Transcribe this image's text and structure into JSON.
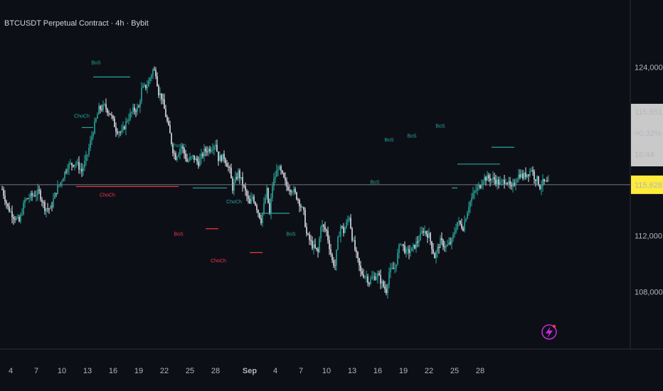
{
  "header": {
    "title": "BTCUSDT Perpetual Contract · 4h · Bybit"
  },
  "colors": {
    "bg": "#0d0f17",
    "up": "#26a69a",
    "down": "#e0e3eb",
    "bull": "#26a69a",
    "bear": "#f23645",
    "price_bg": "#ffeb3b",
    "last_bg": "#c9c9c9",
    "axis_text": "#b2b5be",
    "logo": "#c22bd9"
  },
  "price_panel": {
    "last": "115,651.8",
    "change": "+0.32%",
    "countdown": "16:44",
    "current": "115,628.9"
  },
  "logo_icon": "lightning-icon",
  "chart_data": {
    "type": "candlestick",
    "y_ticks": [
      "124,000.0",
      "112,000.0",
      "108,000.0"
    ],
    "y_tick_values": [
      124000,
      112000,
      108000
    ],
    "x_ticks": [
      "4",
      "7",
      "10",
      "13",
      "16",
      "19",
      "22",
      "25",
      "28",
      "Sep",
      "4",
      "7",
      "10",
      "13",
      "16",
      "19",
      "22",
      "25",
      "28"
    ],
    "x_tick_index": [
      6,
      24,
      42,
      60,
      78,
      96,
      114,
      132,
      150,
      174,
      192,
      210,
      228,
      246,
      264,
      282,
      300,
      318,
      336
    ],
    "current_price": 115628.9,
    "close_path": [
      [
        0,
        115300
      ],
      [
        4,
        114000
      ],
      [
        8,
        113400
      ],
      [
        12,
        113000
      ],
      [
        16,
        114500
      ],
      [
        20,
        114800
      ],
      [
        26,
        115100
      ],
      [
        30,
        114000
      ],
      [
        34,
        113900
      ],
      [
        38,
        115200
      ],
      [
        42,
        116000
      ],
      [
        46,
        117000
      ],
      [
        52,
        117200
      ],
      [
        56,
        116600
      ],
      [
        60,
        117800
      ],
      [
        64,
        119500
      ],
      [
        68,
        121000
      ],
      [
        72,
        121200
      ],
      [
        76,
        120700
      ],
      [
        80,
        119600
      ],
      [
        84,
        119300
      ],
      [
        88,
        120300
      ],
      [
        92,
        120900
      ],
      [
        96,
        121100
      ],
      [
        98,
        122400
      ],
      [
        102,
        122700
      ],
      [
        106,
        123800
      ],
      [
        108,
        123600
      ],
      [
        110,
        122200
      ],
      [
        112,
        121900
      ],
      [
        114,
        121000
      ],
      [
        118,
        119200
      ],
      [
        120,
        118100
      ],
      [
        122,
        117600
      ],
      [
        126,
        118400
      ],
      [
        130,
        117300
      ],
      [
        134,
        117600
      ],
      [
        138,
        117200
      ],
      [
        142,
        118000
      ],
      [
        146,
        118200
      ],
      [
        150,
        118600
      ],
      [
        152,
        117500
      ],
      [
        156,
        117600
      ],
      [
        160,
        116600
      ],
      [
        162,
        115400
      ],
      [
        166,
        116500
      ],
      [
        170,
        115400
      ],
      [
        174,
        114200
      ],
      [
        176,
        114800
      ],
      [
        178,
        114300
      ],
      [
        182,
        113100
      ],
      [
        186,
        115200
      ],
      [
        188,
        113500
      ],
      [
        190,
        115600
      ],
      [
        194,
        116900
      ],
      [
        196,
        116500
      ],
      [
        200,
        115500
      ],
      [
        204,
        115300
      ],
      [
        208,
        114600
      ],
      [
        212,
        113600
      ],
      [
        214,
        112100
      ],
      [
        218,
        111300
      ],
      [
        222,
        110800
      ],
      [
        224,
        112800
      ],
      [
        228,
        112300
      ],
      [
        232,
        110200
      ],
      [
        234,
        109900
      ],
      [
        236,
        111700
      ],
      [
        238,
        112700
      ],
      [
        240,
        112300
      ],
      [
        244,
        113400
      ],
      [
        246,
        111900
      ],
      [
        248,
        111000
      ],
      [
        252,
        109400
      ],
      [
        256,
        109100
      ],
      [
        258,
        108700
      ],
      [
        260,
        109000
      ],
      [
        264,
        109200
      ],
      [
        268,
        108400
      ],
      [
        270,
        108100
      ],
      [
        272,
        109400
      ],
      [
        276,
        109700
      ],
      [
        280,
        111600
      ],
      [
        284,
        110800
      ],
      [
        288,
        111000
      ],
      [
        292,
        111600
      ],
      [
        296,
        112400
      ],
      [
        300,
        112000
      ],
      [
        304,
        110500
      ],
      [
        308,
        111600
      ],
      [
        312,
        111200
      ],
      [
        316,
        111600
      ],
      [
        320,
        113000
      ],
      [
        324,
        112600
      ],
      [
        328,
        114200
      ],
      [
        332,
        115100
      ],
      [
        336,
        115600
      ],
      [
        338,
        116100
      ],
      [
        342,
        116100
      ],
      [
        346,
        116000
      ],
      [
        350,
        115700
      ],
      [
        354,
        116000
      ],
      [
        358,
        115300
      ],
      [
        362,
        116200
      ],
      [
        364,
        116400
      ],
      [
        366,
        116200
      ],
      [
        370,
        116500
      ],
      [
        372,
        116800
      ],
      [
        374,
        116200
      ],
      [
        376,
        116000
      ],
      [
        378,
        115500
      ],
      [
        380,
        115800
      ],
      [
        384,
        115700
      ]
    ],
    "annotations": [
      {
        "text": "BoS",
        "color": "bull",
        "x": 66,
        "y": 124200
      },
      {
        "text": "ChoCh",
        "color": "bull",
        "x": 56,
        "y": 120400
      },
      {
        "text": "ChoCh",
        "color": "bear",
        "x": 74,
        "y": 114800
      },
      {
        "text": "ChoCh",
        "color": "bull",
        "x": 124,
        "y": 118300
      },
      {
        "text": "BoS",
        "color": "bear",
        "x": 124,
        "y": 112000
      },
      {
        "text": "ChoCh",
        "color": "bull",
        "x": 163,
        "y": 114300
      },
      {
        "text": "ChoCh",
        "color": "bear",
        "x": 152,
        "y": 110100
      },
      {
        "text": "BoS",
        "color": "bull",
        "x": 203,
        "y": 112000
      },
      {
        "text": "BoS",
        "color": "bull",
        "x": 272,
        "y": 118700
      },
      {
        "text": "BoS",
        "color": "bull",
        "x": 262,
        "y": 115700
      },
      {
        "text": "BoS",
        "color": "bull",
        "x": 288,
        "y": 119000
      },
      {
        "text": "BoS",
        "color": "bull",
        "x": 308,
        "y": 119700
      }
    ]
  }
}
